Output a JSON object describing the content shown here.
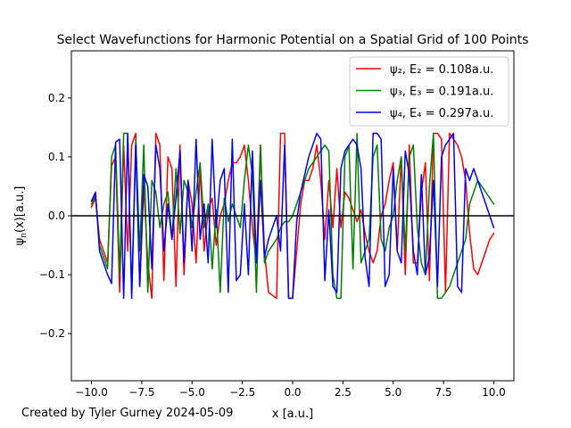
{
  "chart_data": {
    "type": "line",
    "title": "Select Wavefunctions for Harmonic Potential on a Spatial Grid of 100 Points",
    "xlabel": "x [a.u.]",
    "ylabel": "ψ_n(x)[a.u.]",
    "xlim": [
      -11.0,
      11.0
    ],
    "ylim": [
      -0.28,
      0.28
    ],
    "xticks": [
      -10.0,
      -7.5,
      -5.0,
      -2.5,
      0.0,
      2.5,
      5.0,
      7.5,
      10.0
    ],
    "xtick_labels": [
      "−10.0",
      "−7.5",
      "−5.0",
      "−2.5",
      "0.0",
      "2.5",
      "5.0",
      "7.5",
      "10.0"
    ],
    "yticks": [
      -0.2,
      -0.1,
      0.0,
      0.1,
      0.2
    ],
    "ytick_labels": [
      "−0.2",
      "−0.1",
      "0.0",
      "0.1",
      "0.2"
    ],
    "hline": {
      "y": 0.0,
      "color": "#000000"
    },
    "legend_position": "upper-right",
    "grid": false,
    "series": [
      {
        "name": "ψ₂, E₂ = 0.108a.u.",
        "color": "#ff0000",
        "x": [
          -10.0,
          -9.8,
          -9.6,
          -9.4,
          -9.2,
          -9.0,
          -8.8,
          -8.6,
          -8.4,
          -8.2,
          -8.0,
          -7.8,
          -7.6,
          -7.4,
          -7.2,
          -7.0,
          -6.8,
          -6.6,
          -6.4,
          -6.2,
          -6.0,
          -5.8,
          -5.6,
          -5.4,
          -5.2,
          -5.0,
          -4.8,
          -4.6,
          -4.4,
          -4.2,
          -4.0,
          -3.8,
          -3.6,
          -3.4,
          -3.2,
          -3.0,
          -2.8,
          -2.6,
          -2.4,
          -2.2,
          -2.0,
          -1.8,
          -1.6,
          -1.4,
          -1.2,
          -1.0,
          -0.8,
          -0.6,
          -0.4,
          -0.2,
          0.0,
          0.2,
          0.4,
          0.6,
          0.8,
          1.0,
          1.2,
          1.4,
          1.6,
          1.8,
          2.0,
          2.2,
          2.4,
          2.6,
          2.8,
          3.0,
          3.2,
          3.4,
          3.6,
          3.8,
          4.0,
          4.2,
          4.4,
          4.6,
          4.8,
          5.0,
          5.2,
          5.4,
          5.6,
          5.8,
          6.0,
          6.2,
          6.4,
          6.6,
          6.8,
          7.0,
          7.2,
          7.4,
          7.6,
          7.8,
          8.0,
          8.2,
          8.4,
          8.6,
          8.8,
          9.0,
          9.2,
          9.4,
          9.6,
          9.8,
          10.0
        ],
        "y": [
          0.015,
          0.03,
          -0.04,
          -0.06,
          -0.08,
          0.085,
          0.1,
          -0.13,
          0.12,
          -0.06,
          0.12,
          0.14,
          -0.12,
          0.05,
          -0.08,
          -0.14,
          0.14,
          0.12,
          -0.11,
          0.1,
          0.08,
          -0.12,
          0.12,
          -0.1,
          0.06,
          0.02,
          -0.08,
          0.08,
          -0.06,
          0.01,
          0.03,
          -0.05,
          0.0,
          0.02,
          0.06,
          0.09,
          0.09,
          0.1,
          0.12,
          0.06,
          -0.02,
          -0.08,
          0.12,
          -0.06,
          -0.13,
          -0.135,
          -0.14,
          0.14,
          0.14,
          -0.14,
          -0.14,
          -0.06,
          0.02,
          0.06,
          0.06,
          0.08,
          0.12,
          0.06,
          -0.04,
          0.06,
          -0.02,
          0.08,
          -0.02,
          0.04,
          0.03,
          0.01,
          -0.01,
          0.01,
          -0.03,
          -0.06,
          -0.08,
          -0.06,
          0.0,
          0.02,
          0.06,
          0.09,
          -0.06,
          0.1,
          -0.1,
          0.12,
          -0.08,
          -0.08,
          0.04,
          0.09,
          -0.11,
          0.14,
          0.14,
          0.13,
          -0.13,
          0.14,
          0.13,
          0.12,
          0.1,
          0.06,
          -0.03,
          -0.09,
          -0.1,
          -0.08,
          -0.06,
          -0.04,
          -0.03
        ]
      },
      {
        "name": "ψ₃, E₃ = 0.191a.u.",
        "color": "#008000",
        "x": [
          -10.0,
          -9.8,
          -9.6,
          -9.4,
          -9.2,
          -9.0,
          -8.8,
          -8.6,
          -8.4,
          -8.2,
          -8.0,
          -7.8,
          -7.6,
          -7.4,
          -7.2,
          -7.0,
          -6.8,
          -6.6,
          -6.4,
          -6.2,
          -6.0,
          -5.8,
          -5.6,
          -5.4,
          -5.2,
          -5.0,
          -4.8,
          -4.6,
          -4.4,
          -4.2,
          -4.0,
          -3.8,
          -3.6,
          -3.4,
          -3.2,
          -3.0,
          -2.8,
          -2.6,
          -2.4,
          -2.2,
          -2.0,
          -1.8,
          -1.6,
          -1.4,
          -1.2,
          -1.0,
          -0.8,
          -0.6,
          -0.4,
          -0.2,
          0.0,
          0.2,
          0.4,
          0.6,
          0.8,
          1.0,
          1.2,
          1.4,
          1.6,
          1.8,
          2.0,
          2.2,
          2.4,
          2.6,
          2.8,
          3.0,
          3.2,
          3.4,
          3.6,
          3.8,
          4.0,
          4.2,
          4.4,
          4.6,
          4.8,
          5.0,
          5.2,
          5.4,
          5.6,
          5.8,
          6.0,
          6.2,
          6.4,
          6.6,
          6.8,
          7.0,
          7.2,
          7.4,
          7.6,
          7.8,
          8.0,
          8.2,
          8.4,
          8.6,
          8.8,
          9.0,
          9.2,
          9.4,
          9.6,
          9.8,
          10.0
        ],
        "y": [
          0.02,
          0.035,
          -0.05,
          -0.07,
          -0.09,
          0.1,
          0.12,
          -0.1,
          0.14,
          0.14,
          -0.13,
          0.13,
          -0.06,
          0.12,
          -0.13,
          0.06,
          0.04,
          -0.02,
          0.02,
          0.04,
          -0.04,
          0.08,
          -0.03,
          0.06,
          0.04,
          -0.02,
          0.04,
          0.09,
          -0.02,
          0.02,
          -0.09,
          0.01,
          -0.13,
          0.03,
          -0.01,
          0.02,
          0.0,
          -0.02,
          0.06,
          0.12,
          0.07,
          -0.13,
          0.12,
          -0.08,
          -0.06,
          -0.05,
          -0.04,
          -0.02,
          -0.01,
          -0.01,
          0.0,
          0.02,
          0.04,
          0.06,
          0.08,
          0.09,
          0.1,
          0.11,
          0.12,
          0.11,
          -0.1,
          -0.14,
          -0.14,
          0.1,
          0.12,
          -0.09,
          0.14,
          -0.08,
          -0.06,
          -0.04,
          0.1,
          0.12,
          -0.04,
          -0.06,
          -0.02,
          0.0,
          0.06,
          0.1,
          -0.06,
          0.1,
          0.12,
          -0.02,
          -0.08,
          -0.1,
          0.05,
          0.14,
          -0.14,
          -0.14,
          -0.13,
          -0.12,
          -0.1,
          -0.08,
          -0.06,
          -0.04,
          0.02,
          0.04,
          0.06,
          0.05,
          0.04,
          0.03,
          0.02
        ]
      },
      {
        "name": "ψ₄, E₄ = 0.297a.u.",
        "color": "#0000ff",
        "x": [
          -10.0,
          -9.8,
          -9.6,
          -9.4,
          -9.2,
          -9.0,
          -8.8,
          -8.6,
          -8.4,
          -8.2,
          -8.0,
          -7.8,
          -7.6,
          -7.4,
          -7.2,
          -7.0,
          -6.8,
          -6.6,
          -6.4,
          -6.2,
          -6.0,
          -5.8,
          -5.6,
          -5.4,
          -5.2,
          -5.0,
          -4.8,
          -4.6,
          -4.4,
          -4.2,
          -4.0,
          -3.8,
          -3.6,
          -3.4,
          -3.2,
          -3.0,
          -2.8,
          -2.6,
          -2.4,
          -2.2,
          -2.0,
          -1.8,
          -1.6,
          -1.4,
          -1.2,
          -1.0,
          -0.8,
          -0.6,
          -0.4,
          -0.2,
          0.0,
          0.2,
          0.4,
          0.6,
          0.8,
          1.0,
          1.2,
          1.4,
          1.6,
          1.8,
          2.0,
          2.2,
          2.4,
          2.6,
          2.8,
          3.0,
          3.2,
          3.4,
          3.6,
          3.8,
          4.0,
          4.2,
          4.4,
          4.6,
          4.8,
          5.0,
          5.2,
          5.4,
          5.6,
          5.8,
          6.0,
          6.2,
          6.4,
          6.6,
          6.8,
          7.0,
          7.2,
          7.4,
          7.6,
          7.8,
          8.0,
          8.2,
          8.4,
          8.6,
          8.8,
          9.0,
          9.2,
          9.4,
          9.6,
          9.8,
          10.0
        ],
        "y": [
          0.025,
          0.04,
          -0.06,
          -0.08,
          -0.1,
          -0.115,
          0.125,
          0.13,
          -0.14,
          0.14,
          -0.14,
          0.12,
          -0.12,
          0.07,
          0.05,
          -0.09,
          0.12,
          0.08,
          -0.06,
          0.02,
          -0.04,
          0.03,
          0.11,
          -0.08,
          0.06,
          -0.06,
          0.13,
          -0.04,
          0.02,
          -0.08,
          0.13,
          -0.02,
          0.06,
          0.08,
          -0.13,
          0.13,
          -0.11,
          -0.1,
          0.02,
          -0.1,
          0.11,
          -0.08,
          0.06,
          -0.07,
          -0.04,
          -0.02,
          0.0,
          -0.06,
          0.12,
          -0.14,
          -0.14,
          -0.01,
          0.04,
          0.07,
          0.1,
          0.12,
          0.14,
          0.13,
          -0.11,
          0.01,
          -0.12,
          -0.13,
          0.08,
          0.11,
          0.12,
          0.13,
          0.12,
          0.08,
          -0.07,
          -0.12,
          0.14,
          0.14,
          0.13,
          -0.12,
          -0.1,
          0.08,
          -0.06,
          -0.08,
          0.11,
          0.07,
          -0.06,
          -0.1,
          0.07,
          -0.1,
          -0.07,
          0.06,
          -0.12,
          0.1,
          0.12,
          0.13,
          0.14,
          -0.12,
          -0.13,
          0.08,
          0.06,
          0.08,
          0.06,
          0.04,
          0.02,
          0.0,
          -0.02
        ]
      }
    ]
  },
  "footer": {
    "credit": "Created by Tyler Gurney 2024-05-09"
  }
}
